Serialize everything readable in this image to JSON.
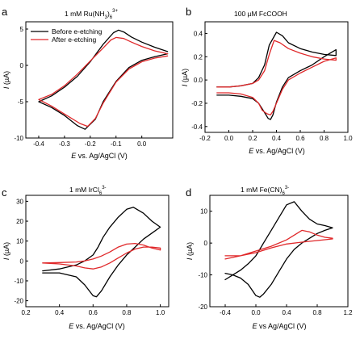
{
  "colors": {
    "before": "#000000",
    "after": "#e0282a"
  },
  "legend": {
    "before": "Before e-etching",
    "after": "After e-etching"
  },
  "chart_data": [
    {
      "type": "line",
      "panel": "a",
      "title": "1 mM Ru(NH3)6 3+",
      "title_parts": {
        "base": "1 mM Ru(NH",
        "sub": "3",
        "mid": ")",
        "sub2": "6",
        "sup": "3+"
      },
      "xlabel": "E vs. Ag/AgCl (V)",
      "ylabel": "I (µA)",
      "xlim": [
        -0.45,
        0.12
      ],
      "ylim": [
        -10,
        6
      ],
      "xticks": [
        "-0.4",
        "-0.3",
        "-0.2",
        "-0.1",
        "0.0"
      ],
      "xtick_values": [
        -0.4,
        -0.3,
        -0.2,
        -0.1,
        0.0
      ],
      "yticks": [
        "5",
        "0",
        "-5",
        "-10"
      ],
      "ytick_values": [
        5,
        0,
        -5,
        -10
      ],
      "legend_position": "top-left",
      "series": [
        {
          "name": "Before e-etching",
          "color": "#000000",
          "x": [
            0.1,
            0.05,
            0.0,
            -0.05,
            -0.1,
            -0.15,
            -0.18,
            -0.22,
            -0.25,
            -0.3,
            -0.35,
            -0.4,
            -0.35,
            -0.3,
            -0.25,
            -0.2,
            -0.15,
            -0.11,
            -0.09,
            -0.07,
            -0.04,
            0.0,
            0.05,
            0.1
          ],
          "y": [
            1.6,
            1.2,
            0.7,
            -0.3,
            -2.2,
            -5.0,
            -7.4,
            -8.8,
            -8.3,
            -6.9,
            -5.8,
            -5.0,
            -4.2,
            -3.0,
            -1.5,
            0.5,
            2.9,
            4.5,
            4.85,
            4.6,
            3.9,
            3.2,
            2.5,
            1.9
          ]
        },
        {
          "name": "After e-etching",
          "color": "#e0282a",
          "x": [
            0.1,
            0.05,
            0.0,
            -0.05,
            -0.1,
            -0.15,
            -0.18,
            -0.21,
            -0.24,
            -0.3,
            -0.35,
            -0.4,
            -0.35,
            -0.3,
            -0.25,
            -0.2,
            -0.15,
            -0.12,
            -0.1,
            -0.07,
            -0.04,
            0.0,
            0.05,
            0.1
          ],
          "y": [
            1.3,
            1.0,
            0.5,
            -0.5,
            -2.3,
            -5.2,
            -7.3,
            -8.4,
            -8.0,
            -6.7,
            -5.6,
            -4.7,
            -4.0,
            -2.8,
            -1.2,
            0.6,
            2.4,
            3.5,
            3.85,
            3.7,
            3.2,
            2.6,
            2.0,
            1.6
          ]
        }
      ]
    },
    {
      "type": "line",
      "panel": "b",
      "title": "100 µM FcCOOH",
      "xlabel": "E vs. Ag/AgCl (V)",
      "ylabel": "I (µA)",
      "xlim": [
        -0.2,
        1.0
      ],
      "ylim": [
        -0.45,
        0.5
      ],
      "xticks": [
        "-0.2",
        "0.0",
        "0.2",
        "0.4",
        "0.6",
        "0.8",
        "1.0"
      ],
      "xtick_values": [
        -0.2,
        0.0,
        0.2,
        0.4,
        0.6,
        0.8,
        1.0
      ],
      "yticks": [
        "0.4",
        "0.2",
        "0.0",
        "-0.2",
        "-0.4"
      ],
      "ytick_values": [
        0.4,
        0.2,
        0.0,
        -0.2,
        -0.4
      ],
      "series": [
        {
          "name": "Before e-etching",
          "color": "#000000",
          "x": [
            -0.1,
            0.0,
            0.1,
            0.2,
            0.25,
            0.3,
            0.34,
            0.4,
            0.45,
            0.5,
            0.6,
            0.7,
            0.8,
            0.9,
            0.9,
            0.8,
            0.7,
            0.6,
            0.5,
            0.45,
            0.4,
            0.37,
            0.35,
            0.33,
            0.3,
            0.25,
            0.2,
            0.1,
            0.0,
            -0.1
          ],
          "y": [
            -0.06,
            -0.06,
            -0.05,
            -0.03,
            0.02,
            0.13,
            0.3,
            0.41,
            0.38,
            0.32,
            0.27,
            0.24,
            0.22,
            0.21,
            0.26,
            0.2,
            0.13,
            0.08,
            0.02,
            -0.06,
            -0.19,
            -0.3,
            -0.34,
            -0.33,
            -0.28,
            -0.2,
            -0.16,
            -0.14,
            -0.13,
            -0.13
          ]
        },
        {
          "name": "After e-etching",
          "color": "#e0282a",
          "x": [
            -0.1,
            0.0,
            0.1,
            0.2,
            0.25,
            0.3,
            0.34,
            0.38,
            0.43,
            0.5,
            0.6,
            0.7,
            0.8,
            0.9,
            0.9,
            0.8,
            0.7,
            0.6,
            0.5,
            0.45,
            0.4,
            0.37,
            0.35,
            0.32,
            0.28,
            0.25,
            0.2,
            0.1,
            0.0,
            -0.1
          ],
          "y": [
            -0.06,
            -0.06,
            -0.05,
            -0.03,
            0.0,
            0.08,
            0.22,
            0.34,
            0.32,
            0.27,
            0.23,
            0.2,
            0.18,
            0.17,
            0.19,
            0.16,
            0.11,
            0.06,
            0.0,
            -0.08,
            -0.2,
            -0.27,
            -0.3,
            -0.29,
            -0.26,
            -0.2,
            -0.15,
            -0.12,
            -0.11,
            -0.11
          ]
        }
      ]
    },
    {
      "type": "line",
      "panel": "c",
      "title": "1 mM IrCl6 3-",
      "title_parts": {
        "base": "1 mM IrCl",
        "sub": "6",
        "sup": "3-"
      },
      "xlabel": "E vs. Ag/AgCl (V)",
      "ylabel": "I (µA)",
      "xlim": [
        0.2,
        1.05
      ],
      "ylim": [
        -23,
        33
      ],
      "xticks": [
        "0.2",
        "0.4",
        "0.6",
        "0.8",
        "1.0"
      ],
      "xtick_values": [
        0.2,
        0.4,
        0.6,
        0.8,
        1.0
      ],
      "yticks": [
        "30",
        "20",
        "10",
        "0",
        "-10",
        "-20"
      ],
      "ytick_values": [
        30,
        20,
        10,
        0,
        -10,
        -20
      ],
      "series": [
        {
          "name": "Before e-etching",
          "color": "#000000",
          "x": [
            0.3,
            0.4,
            0.5,
            0.55,
            0.6,
            0.63,
            0.66,
            0.7,
            0.75,
            0.8,
            0.84,
            0.9,
            0.95,
            1.0,
            1.0,
            0.95,
            0.9,
            0.85,
            0.8,
            0.75,
            0.7,
            0.65,
            0.62,
            0.6,
            0.55,
            0.5,
            0.4,
            0.3
          ],
          "y": [
            -5,
            -4,
            -2,
            0,
            3,
            7,
            12,
            17,
            22,
            26,
            27,
            24,
            20,
            17,
            17,
            14,
            11,
            7,
            3,
            -2,
            -8,
            -15,
            -18,
            -17.5,
            -12,
            -8,
            -6,
            -6
          ]
        },
        {
          "name": "After e-etching",
          "color": "#e0282a",
          "x": [
            0.3,
            0.4,
            0.5,
            0.55,
            0.6,
            0.65,
            0.7,
            0.75,
            0.8,
            0.85,
            0.9,
            0.95,
            1.0,
            1.0,
            0.95,
            0.9,
            0.85,
            0.8,
            0.75,
            0.7,
            0.65,
            0.6,
            0.55,
            0.5,
            0.4,
            0.3
          ],
          "y": [
            -1,
            -0.8,
            -0.5,
            0,
            1,
            2.5,
            4.5,
            7,
            8.5,
            8.8,
            8,
            6.5,
            5.5,
            6.5,
            7,
            7,
            6,
            4,
            1.5,
            -1,
            -3,
            -4,
            -3.5,
            -2.5,
            -1.5,
            -1
          ]
        }
      ]
    },
    {
      "type": "line",
      "panel": "d",
      "title": "1 mM Fe(CN)6 3-",
      "title_parts": {
        "base": "1 mM Fe(CN)",
        "sub": "6",
        "sup": "3-"
      },
      "xlabel": "E vs Ag/AgCl (V)",
      "ylabel": "I (µA)",
      "xlim": [
        -0.6,
        1.2
      ],
      "ylim": [
        -20,
        15
      ],
      "xticks": [
        "-0.4",
        "0.0",
        "0.4",
        "0.8",
        "1.2"
      ],
      "xtick_values": [
        -0.4,
        0.0,
        0.4,
        0.8,
        1.2
      ],
      "yticks": [
        "10",
        "0",
        "-10",
        "-20"
      ],
      "ytick_values": [
        10,
        0,
        -10,
        -20
      ],
      "series": [
        {
          "name": "Before e-etching",
          "color": "#000000",
          "x": [
            -0.4,
            -0.3,
            -0.2,
            -0.1,
            0.0,
            0.05,
            0.1,
            0.2,
            0.3,
            0.4,
            0.5,
            0.6,
            0.7,
            0.8,
            0.9,
            1.0,
            1.0,
            0.9,
            0.8,
            0.7,
            0.6,
            0.5,
            0.4,
            0.3,
            0.2,
            0.1,
            0.05,
            0.0,
            -0.1,
            -0.2,
            -0.3,
            -0.4
          ],
          "y": [
            -11.5,
            -10,
            -8.5,
            -6.5,
            -4,
            -2,
            0,
            4,
            8,
            12,
            13,
            10,
            7.5,
            6,
            5.5,
            4.8,
            4.8,
            4,
            3,
            1.5,
            0,
            -2,
            -5,
            -9,
            -13,
            -16,
            -17,
            -16.5,
            -13,
            -11,
            -10,
            -9.5
          ]
        },
        {
          "name": "After e-etching",
          "color": "#e0282a",
          "x": [
            -0.4,
            -0.2,
            0.0,
            0.2,
            0.4,
            0.5,
            0.6,
            0.7,
            0.8,
            0.9,
            1.0,
            1.0,
            0.8,
            0.6,
            0.4,
            0.2,
            0.0,
            -0.2,
            -0.4
          ],
          "y": [
            -5,
            -4,
            -2.5,
            -1,
            1,
            2.5,
            4,
            3.5,
            2.5,
            1.8,
            1.5,
            1.3,
            0.8,
            0.3,
            -0.3,
            -1.5,
            -3,
            -4,
            -4
          ]
        }
      ]
    }
  ]
}
